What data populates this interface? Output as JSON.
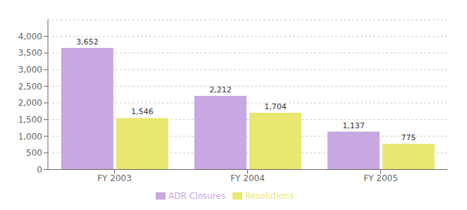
{
  "chart_data": {
    "type": "bar",
    "categories": [
      "FY 2003",
      "FY 2004",
      "FY 2005"
    ],
    "series": [
      {
        "name": "ADR Closures",
        "color": "#c8a8e0",
        "values": [
          3652,
          2212,
          1137
        ],
        "value_labels": [
          "3,652",
          "2,212",
          "1,137"
        ]
      },
      {
        "name": "Resolutions",
        "color": "#e8e870",
        "values": [
          1546,
          1704,
          775
        ],
        "value_labels": [
          "1,546",
          "1,704",
          "775"
        ]
      }
    ],
    "ylim": [
      0,
      4500
    ],
    "yticks": [
      0,
      500,
      {
        "value": 1000,
        "label": "1,000"
      },
      {
        "value": 1500,
        "label": "1,500"
      },
      {
        "value": 2000,
        "label": "2,000"
      },
      {
        "value": 2500,
        "label": "2,500"
      },
      {
        "value": 3000,
        "label": "3,000"
      },
      {
        "value": 3500,
        "label": "3,500"
      },
      {
        "value": 4000,
        "label": "4,000"
      }
    ],
    "grid": true,
    "legend": "bottom",
    "data_labels": true
  }
}
